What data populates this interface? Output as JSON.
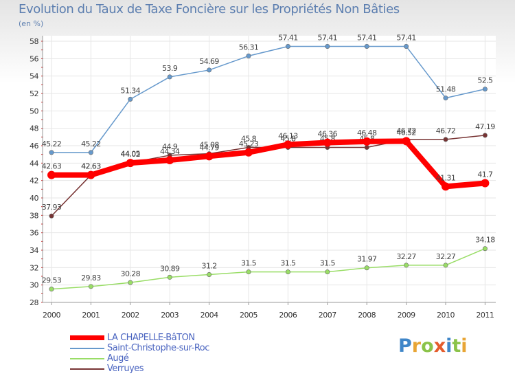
{
  "header": {
    "title": "Evolution du Taux de Taxe Foncière sur les Propriétés Non Bâties",
    "unit": "(en %)"
  },
  "logo": {
    "text": "Proxiti",
    "letters": [
      "P",
      "r",
      "o",
      "x",
      "i",
      "t",
      "i"
    ]
  },
  "chart_data": {
    "type": "line",
    "title": "Evolution du Taux de Taxe Foncière sur les Propriétés Non Bâties",
    "ylabel": "(en %)",
    "xlabel": "",
    "ylim": [
      28,
      58
    ],
    "yticks": [
      28,
      30,
      32,
      34,
      36,
      38,
      40,
      42,
      44,
      46,
      48,
      50,
      52,
      54,
      56,
      58
    ],
    "categories": [
      "2000",
      "2001",
      "2002",
      "2003",
      "2004",
      "2005",
      "2006",
      "2007",
      "2008",
      "2009",
      "2010",
      "2011"
    ],
    "grid": true,
    "series": [
      {
        "name": "Saint-Christophe-sur-Roc",
        "color": "#6699cc",
        "values": [
          45.22,
          45.22,
          51.34,
          53.9,
          54.69,
          56.31,
          57.41,
          57.41,
          57.41,
          57.41,
          51.48,
          52.5
        ],
        "labels": [
          "45.22",
          "45.22",
          "51.34",
          "53.9",
          "54.69",
          "56.31",
          "57.41",
          "57.41",
          "57.41",
          "57.41",
          "51.48",
          "52.5"
        ]
      },
      {
        "name": "Augé",
        "color": "#99dd66",
        "values": [
          29.53,
          29.83,
          30.28,
          30.89,
          31.2,
          31.5,
          31.5,
          31.5,
          31.97,
          32.27,
          32.27,
          34.18
        ],
        "labels": [
          "29.53",
          "29.83",
          "30.28",
          "30.89",
          "31.2",
          "31.5",
          "31.5",
          "31.5",
          "31.97",
          "32.27",
          "32.27",
          "34.18"
        ]
      },
      {
        "name": "Verruyes",
        "color": "#773333",
        "values": [
          37.93,
          42.63,
          44.05,
          44.9,
          45.08,
          45.8,
          45.8,
          45.8,
          45.8,
          46.72,
          46.72,
          47.19
        ],
        "labels": [
          "37.93",
          "42.63",
          "44.05",
          "44.9",
          "45.08",
          "45.8",
          "45.8",
          "45.8",
          "45.8",
          "46.72",
          "46.72",
          "47.19"
        ]
      },
      {
        "name": "LA CHAPELLE-BâTON",
        "color": "#ff0000",
        "values": [
          42.63,
          42.63,
          44.02,
          44.34,
          44.79,
          45.23,
          46.13,
          46.36,
          46.48,
          46.52,
          41.31,
          41.7
        ],
        "labels": [
          "42.63",
          "42.63",
          "44.02",
          "44.34",
          "44.79",
          "45.23",
          "46.13",
          "46.36",
          "46.48",
          "46.52",
          "41.31",
          "41.7"
        ]
      }
    ],
    "legend": [
      {
        "name": "LA CHAPELLE-BâTON",
        "color": "#ff0000"
      },
      {
        "name": "Saint-Christophe-sur-Roc",
        "color": "#6699cc"
      },
      {
        "name": "Augé",
        "color": "#99dd66"
      },
      {
        "name": "Verruyes",
        "color": "#773333"
      }
    ]
  }
}
